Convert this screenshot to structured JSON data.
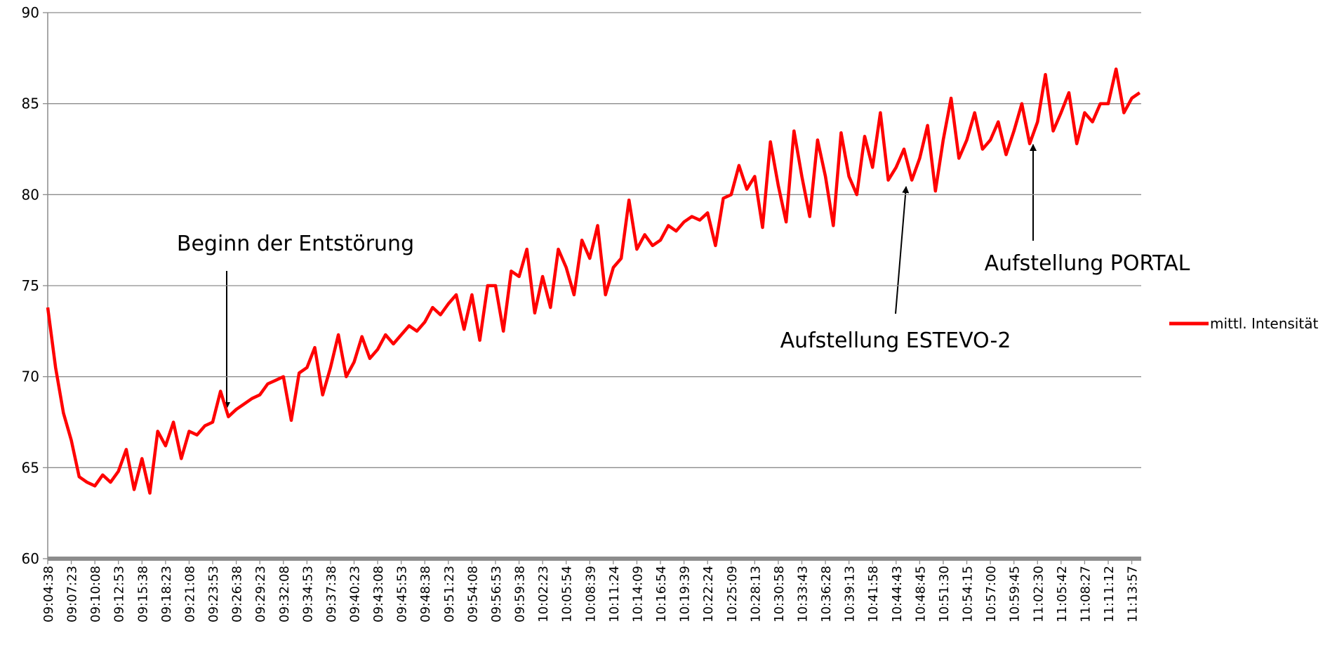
{
  "chart_data": {
    "type": "line",
    "categories": [
      "09:04:38",
      null,
      null,
      "09:07:23",
      null,
      null,
      "09:10:08",
      null,
      null,
      "09:12:53",
      null,
      null,
      "09:15:38",
      null,
      null,
      "09:18:23",
      null,
      null,
      "09:21:08",
      null,
      null,
      "09:23:53",
      null,
      null,
      "09:26:38",
      null,
      null,
      "09:29:23",
      null,
      null,
      "09:32:08",
      null,
      null,
      "09:34:53",
      null,
      null,
      "09:37:38",
      null,
      null,
      "09:40:23",
      null,
      null,
      "09:43:08",
      null,
      null,
      "09:45:53",
      null,
      null,
      "09:48:38",
      null,
      null,
      "09:51:23",
      null,
      null,
      "09:54:08",
      null,
      null,
      "09:56:53",
      null,
      null,
      "09:59:38",
      null,
      null,
      "10:02:23",
      null,
      null,
      "10:05:54",
      null,
      null,
      "10:08:39",
      null,
      null,
      "10:11:24",
      null,
      null,
      "10:14:09",
      null,
      null,
      "10:16:54",
      null,
      null,
      "10:19:39",
      null,
      null,
      "10:22:24",
      null,
      null,
      "10:25:09",
      null,
      null,
      "10:28:13",
      null,
      null,
      "10:30:58",
      null,
      null,
      "10:33:43",
      null,
      null,
      "10:36:28",
      null,
      null,
      "10:39:13",
      null,
      null,
      "10:41:58",
      null,
      null,
      "10:44:43",
      null,
      null,
      "10:48:45",
      null,
      null,
      "10:51:30",
      null,
      null,
      "10:54:15",
      null,
      null,
      "10:57:00",
      null,
      null,
      "10:59:45",
      null,
      null,
      "11:02:30",
      null,
      null,
      "11:05:42",
      null,
      null,
      "11:08:27",
      null,
      null,
      "11:11:12",
      null,
      null,
      "11:13:57",
      null
    ],
    "series": [
      {
        "name": "mittl. Intensität",
        "color": "#ff0000",
        "values": [
          73.8,
          70.5,
          68,
          66.5,
          64.5,
          64.2,
          64,
          64.6,
          64.2,
          64.8,
          66,
          63.8,
          65.5,
          63.6,
          67,
          66.2,
          67.5,
          65.5,
          67,
          66.8,
          67.3,
          67.5,
          69.2,
          67.8,
          68.2,
          68.5,
          68.8,
          69,
          69.6,
          69.8,
          70,
          67.6,
          70.2,
          70.5,
          71.6,
          69,
          70.5,
          72.3,
          70,
          70.8,
          72.2,
          71,
          71.5,
          72.3,
          71.8,
          72.3,
          72.8,
          72.5,
          73,
          73.8,
          73.4,
          74,
          74.5,
          72.6,
          74.5,
          72,
          75,
          75,
          72.5,
          75.8,
          75.5,
          77,
          73.5,
          75.5,
          73.8,
          77,
          76,
          74.5,
          77.5,
          76.5,
          78.3,
          74.5,
          76,
          76.5,
          79.7,
          77,
          77.8,
          77.2,
          77.5,
          78.3,
          78,
          78.5,
          78.8,
          78.6,
          79,
          77.2,
          79.8,
          80,
          81.6,
          80.3,
          81,
          78.2,
          82.9,
          80.5,
          78.5,
          83.5,
          81,
          78.8,
          83,
          81,
          78.3,
          83.4,
          81,
          80,
          83.2,
          81.5,
          84.5,
          80.8,
          81.5,
          82.5,
          80.8,
          82,
          83.8,
          80.2,
          83,
          85.3,
          82,
          83,
          84.5,
          82.5,
          83,
          84,
          82.2,
          83.5,
          85,
          82.8,
          84,
          86.6,
          83.5,
          84.5,
          85.6,
          82.8,
          84.5,
          84,
          85,
          85,
          86.9,
          84.5,
          85.3,
          85.6
        ]
      }
    ],
    "ylim": [
      60,
      90
    ],
    "yticks": [
      60,
      65,
      70,
      75,
      80,
      85,
      90
    ],
    "grid": true,
    "legend": "right",
    "annotations": [
      {
        "text": "Beginn der Entstörung"
      },
      {
        "text": "Aufstellung ESTEVO-2"
      },
      {
        "text": "Aufstellung PORTAL"
      }
    ]
  }
}
